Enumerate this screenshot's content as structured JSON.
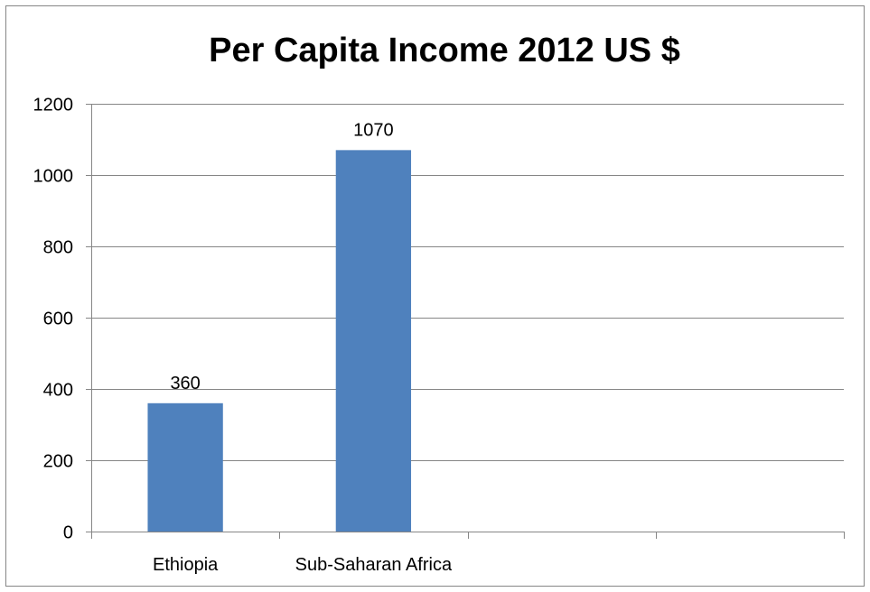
{
  "chart_data": {
    "type": "bar",
    "title": "Per Capita Income 2012 US $",
    "categories": [
      "Ethiopia",
      "Sub-Saharan Africa",
      "",
      ""
    ],
    "values": [
      360,
      1070,
      null,
      null
    ],
    "data_labels": [
      "360",
      "1070",
      "",
      ""
    ],
    "ylim": [
      0,
      1200
    ],
    "yticks": [
      0,
      200,
      400,
      600,
      800,
      1000,
      1200
    ],
    "xlabel": "",
    "ylabel": "",
    "grid": true,
    "legend": "none",
    "bar_color": "#4f81bd",
    "grid_color": "#868686",
    "border_color": "#868686"
  }
}
